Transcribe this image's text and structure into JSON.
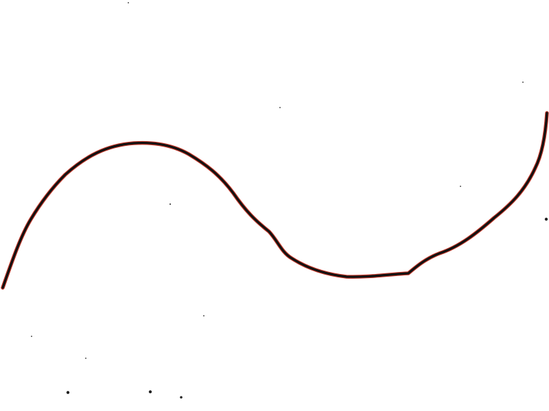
{
  "colors": {
    "background": "#ffffff",
    "stroke_main": "#111111",
    "stroke_edge": "#c0392b",
    "speck": "#222222"
  },
  "icons": {
    "curve": "hand-drawn-curve-icon",
    "speck": "speck-icon"
  }
}
